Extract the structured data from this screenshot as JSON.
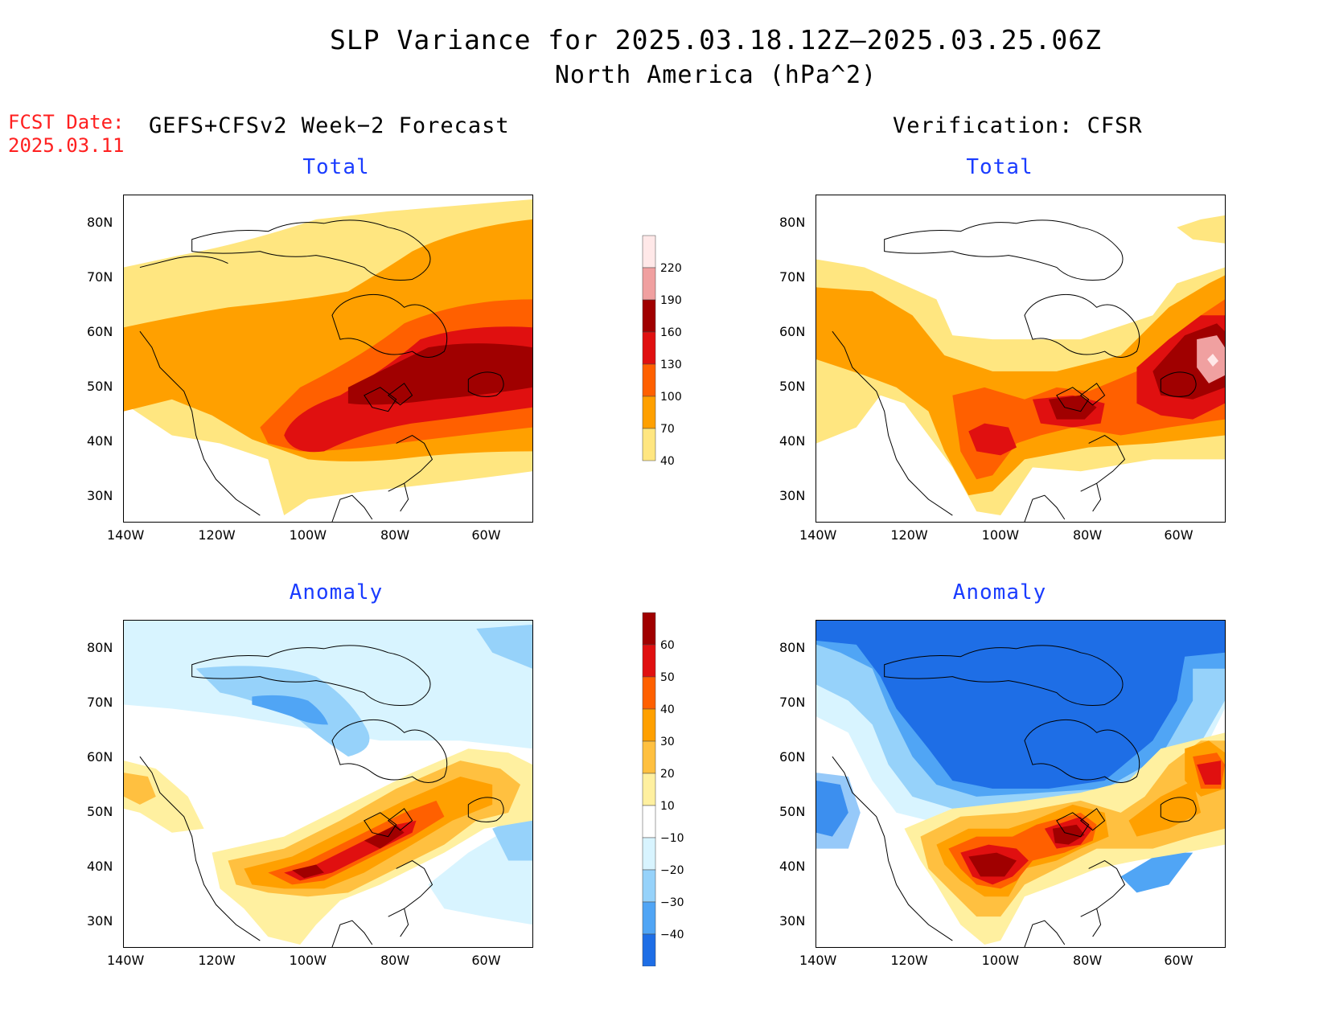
{
  "header": {
    "title": "SLP Variance for 2025.03.18.12Z–2025.03.25.06Z",
    "subtitle": "North America (hPa^2)",
    "fcst_label": "FCST Date:",
    "fcst_date": "2025.03.11",
    "left_heading": "GEFS+CFSv2 Week−2 Forecast",
    "right_heading": "Verification: CFSR"
  },
  "panels": [
    {
      "title": "Total",
      "kind": "total",
      "source": "forecast"
    },
    {
      "title": "Total",
      "kind": "total",
      "source": "verification"
    },
    {
      "title": "Anomaly",
      "kind": "anomaly",
      "source": "forecast"
    },
    {
      "title": "Anomaly",
      "kind": "anomaly",
      "source": "verification"
    }
  ],
  "axes": {
    "x_ticks": [
      "140W",
      "120W",
      "100W",
      "80W",
      "60W"
    ],
    "y_ticks": [
      "80N",
      "70N",
      "60N",
      "50N",
      "40N",
      "30N"
    ]
  },
  "colorbars": {
    "total": {
      "levels": [
        "40",
        "70",
        "100",
        "130",
        "160",
        "190",
        "220"
      ],
      "colors": [
        "#ffe680",
        "#ffa000",
        "#ff6000",
        "#e01010",
        "#a00000",
        "#f0a0a0",
        "#ffe8e8"
      ]
    },
    "anomaly": {
      "levels": [
        "60",
        "50",
        "40",
        "30",
        "20",
        "10",
        "−10",
        "−20",
        "−30",
        "−40"
      ],
      "colors": [
        "#a00000",
        "#e01010",
        "#ff6000",
        "#ffa000",
        "#ffc040",
        "#fff0a0",
        "#ffffff",
        "#d8f4ff",
        "#96d2fa",
        "#50a5f5",
        "#1e6ee6"
      ]
    }
  }
}
